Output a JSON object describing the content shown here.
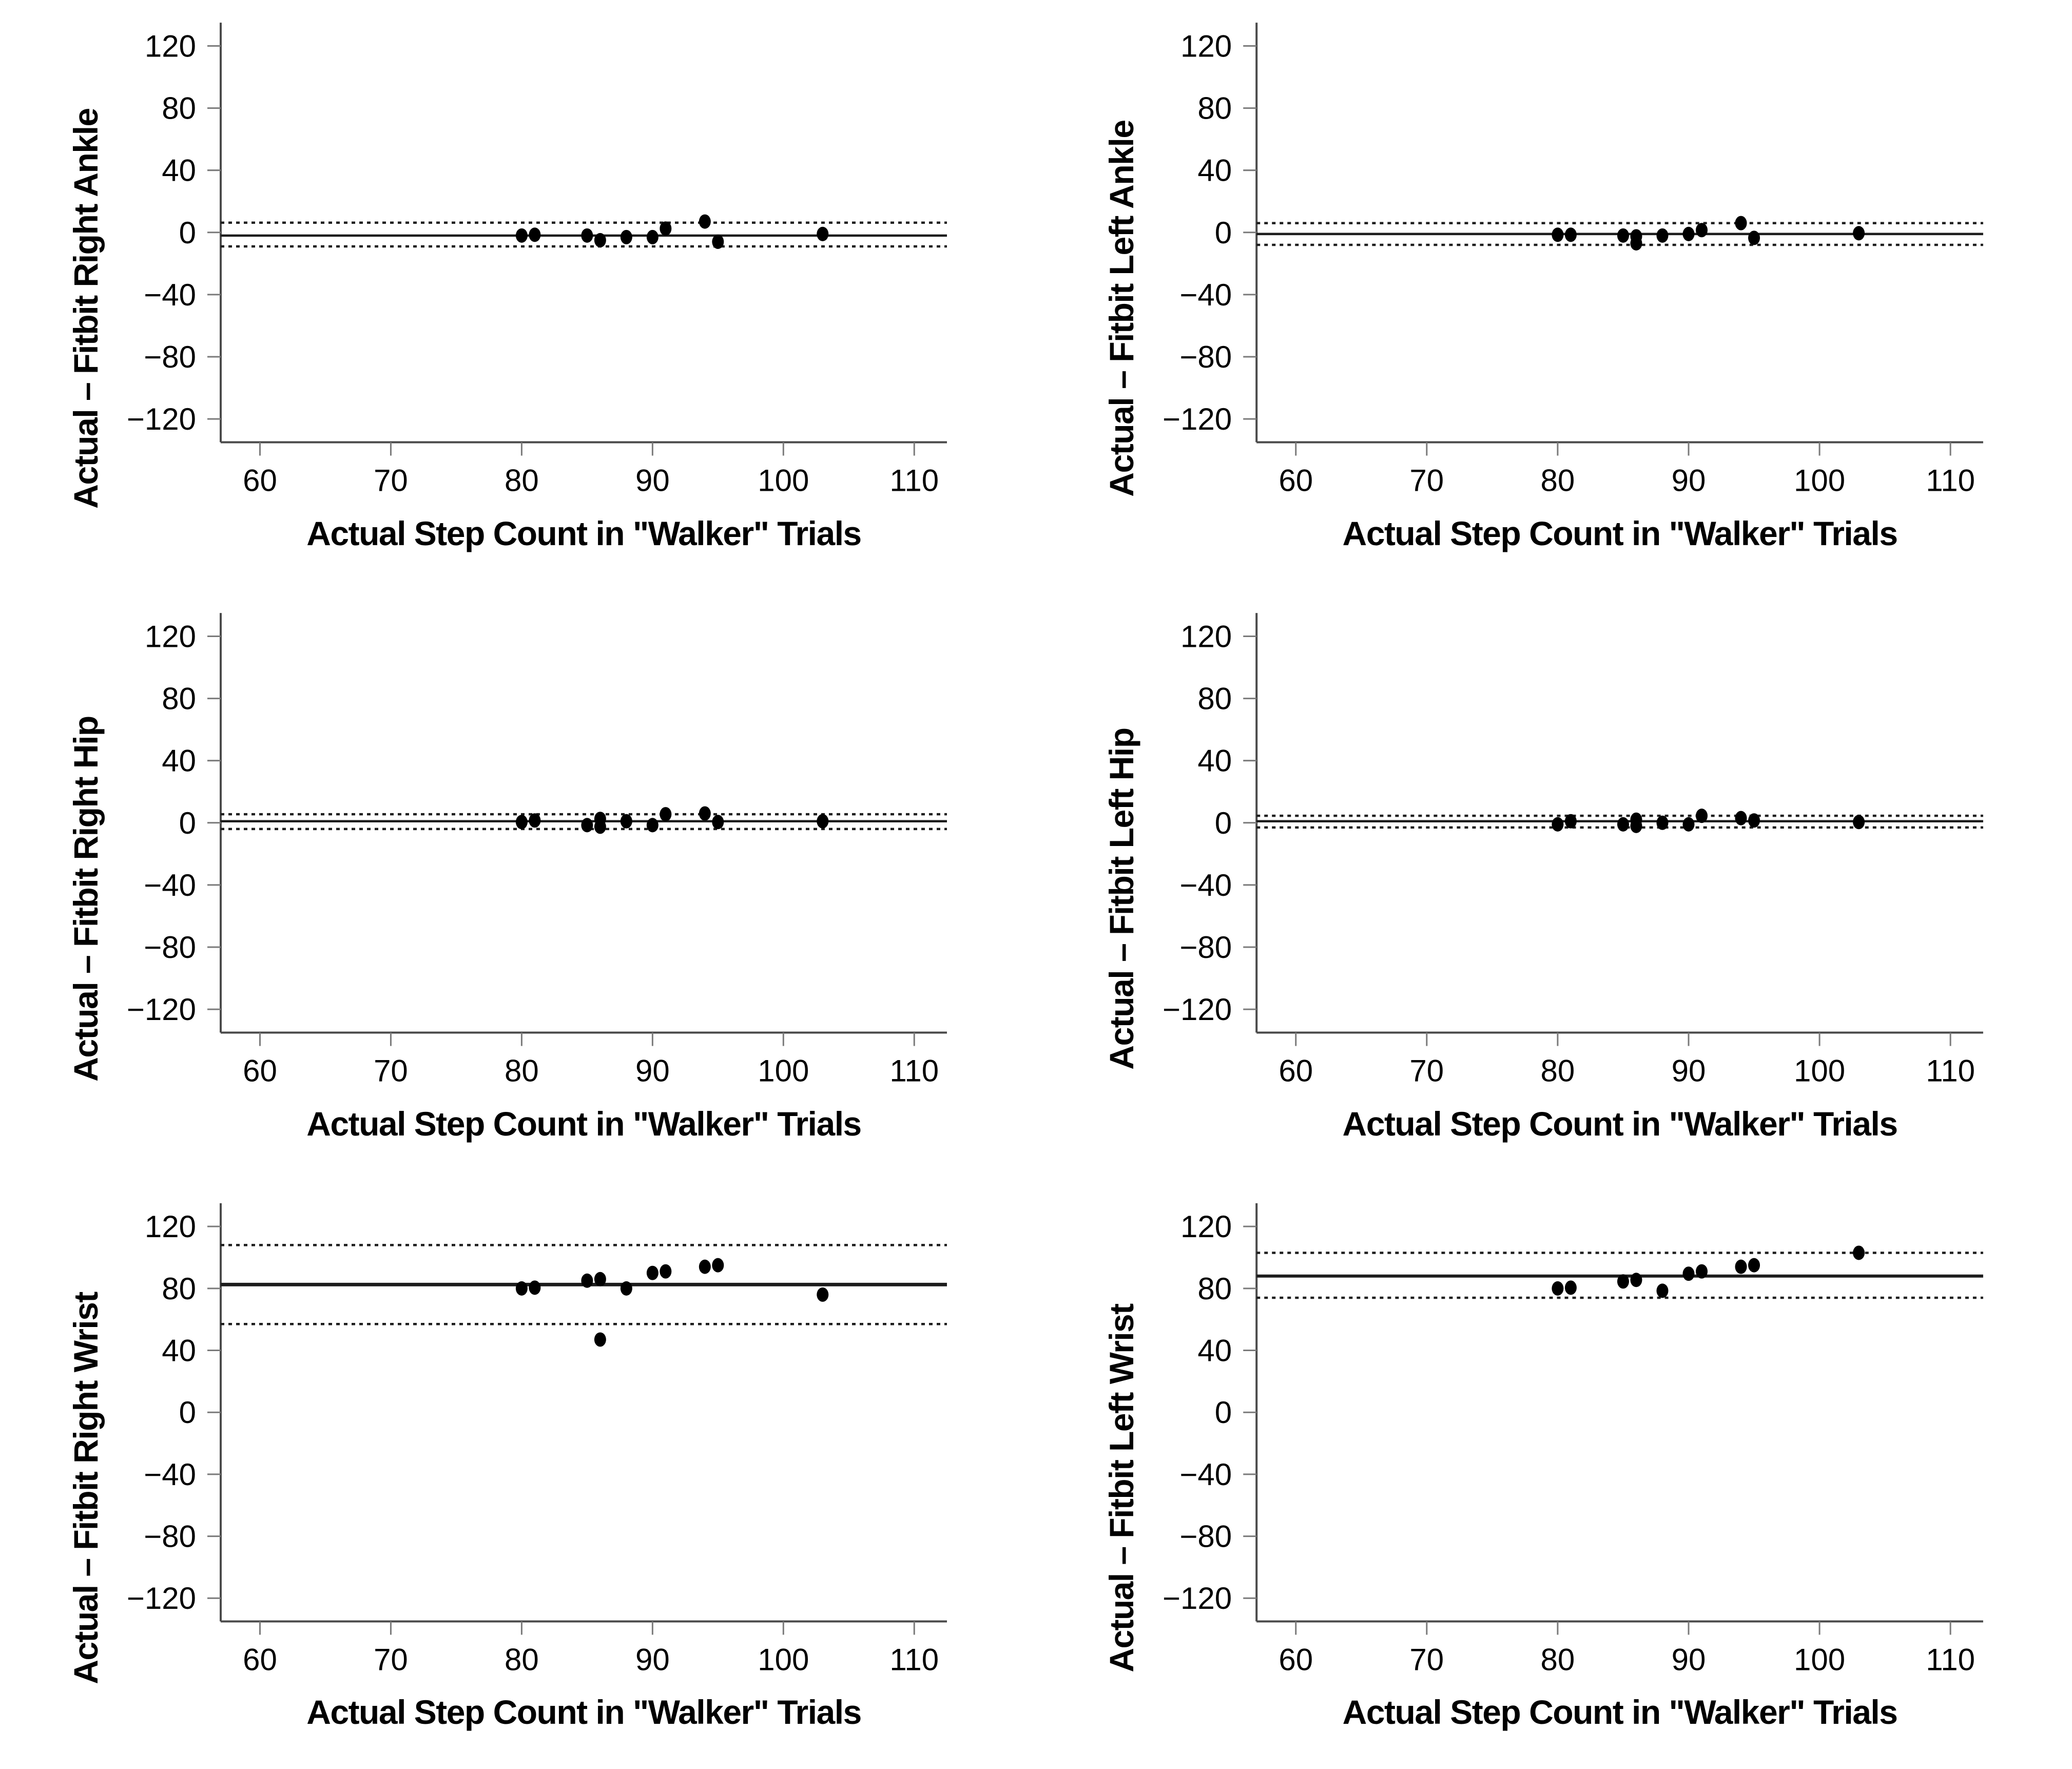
{
  "figure": {
    "background": "#ffffff",
    "point_color": "#000000",
    "line_color": "#1c1c1c",
    "axis_color": "#4a4a4a",
    "x_axis": {
      "label": "Actual Step Count in \"Walker\" Trials",
      "ticks": [
        60,
        70,
        80,
        90,
        100,
        110
      ],
      "domain": [
        57,
        112.5
      ]
    },
    "y_axis": {
      "ticks": [
        120,
        80,
        40,
        0,
        -40,
        -80,
        -120
      ],
      "domain": [
        -135,
        135
      ]
    }
  },
  "chart_data": [
    {
      "id": "right-ankle",
      "type": "scatter",
      "ylabel": "Actual – Fitbit Right Ankle",
      "xlabel": "Actual Step Count in \"Walker\" Trials",
      "ylim": [
        -135,
        135
      ],
      "mean": -2,
      "loa_upper": 6.3,
      "loa_lower": -9,
      "mean_stroke": 4.5,
      "points": [
        [
          80,
          -2
        ],
        [
          81,
          -1.5
        ],
        [
          85,
          -2
        ],
        [
          86,
          -5
        ],
        [
          88,
          -3
        ],
        [
          90,
          -3
        ],
        [
          91,
          2.5
        ],
        [
          94,
          7
        ],
        [
          95,
          -6
        ],
        [
          103,
          -1
        ]
      ]
    },
    {
      "id": "left-ankle",
      "type": "scatter",
      "ylabel": "Actual – Fitbit Left Ankle",
      "xlabel": "Actual Step Count in \"Walker\" Trials",
      "ylim": [
        -135,
        135
      ],
      "mean": -1,
      "loa_upper": 6,
      "loa_lower": -8,
      "mean_stroke": 4.5,
      "points": [
        [
          80,
          -1.5
        ],
        [
          81,
          -1.5
        ],
        [
          85,
          -2
        ],
        [
          86,
          -2.5
        ],
        [
          86,
          -7
        ],
        [
          88,
          -2
        ],
        [
          90,
          -1
        ],
        [
          91,
          1.5
        ],
        [
          94,
          6
        ],
        [
          95,
          -3.5
        ],
        [
          103,
          -0.5
        ]
      ]
    },
    {
      "id": "right-hip",
      "type": "scatter",
      "ylabel": "Actual – Fitbit Right Hip",
      "xlabel": "Actual Step Count in \"Walker\" Trials",
      "ylim": [
        -135,
        135
      ],
      "mean": 1,
      "loa_upper": 5.5,
      "loa_lower": -4,
      "mean_stroke": 4.5,
      "points": [
        [
          80,
          0.5
        ],
        [
          81,
          1.5
        ],
        [
          85,
          -1.5
        ],
        [
          86,
          2.5
        ],
        [
          86,
          -2.5
        ],
        [
          88,
          1
        ],
        [
          90,
          -1.5
        ],
        [
          91,
          5.5
        ],
        [
          94,
          6
        ],
        [
          95,
          0.5
        ],
        [
          103,
          1
        ]
      ]
    },
    {
      "id": "left-hip",
      "type": "scatter",
      "ylabel": "Actual – Fitbit Left Hip",
      "xlabel": "Actual Step Count in \"Walker\" Trials",
      "ylim": [
        -135,
        135
      ],
      "mean": 1,
      "loa_upper": 4.5,
      "loa_lower": -3,
      "mean_stroke": 4.5,
      "points": [
        [
          80,
          -1
        ],
        [
          81,
          1
        ],
        [
          85,
          -1
        ],
        [
          86,
          2
        ],
        [
          86,
          -2
        ],
        [
          88,
          0
        ],
        [
          90,
          -1
        ],
        [
          91,
          4.5
        ],
        [
          94,
          3
        ],
        [
          95,
          1.5
        ],
        [
          103,
          0.5
        ]
      ]
    },
    {
      "id": "right-wrist",
      "type": "scatter",
      "ylabel": "Actual – Fitbit Right Wrist",
      "xlabel": "Actual Step Count in \"Walker\" Trials",
      "ylim": [
        -135,
        135
      ],
      "mean": 82.5,
      "loa_upper": 108,
      "loa_lower": 57,
      "mean_stroke": 7,
      "points": [
        [
          80,
          80
        ],
        [
          81,
          80.5
        ],
        [
          85,
          85
        ],
        [
          86,
          86
        ],
        [
          86,
          47
        ],
        [
          88,
          80
        ],
        [
          90,
          90
        ],
        [
          91,
          91
        ],
        [
          94,
          94
        ],
        [
          95,
          95
        ],
        [
          103,
          76
        ]
      ]
    },
    {
      "id": "left-wrist",
      "type": "scatter",
      "ylabel": "Actual – Fitbit Left Wrist",
      "xlabel": "Actual Step Count in \"Walker\" Trials",
      "ylim": [
        -135,
        135
      ],
      "mean": 88,
      "loa_upper": 103,
      "loa_lower": 74,
      "mean_stroke": 6,
      "points": [
        [
          80,
          80
        ],
        [
          81,
          80.5
        ],
        [
          85,
          84.5
        ],
        [
          86,
          85.5
        ],
        [
          88,
          78.5
        ],
        [
          90,
          89.5
        ],
        [
          91,
          91
        ],
        [
          94,
          94
        ],
        [
          95,
          95
        ],
        [
          103,
          103
        ]
      ]
    }
  ]
}
